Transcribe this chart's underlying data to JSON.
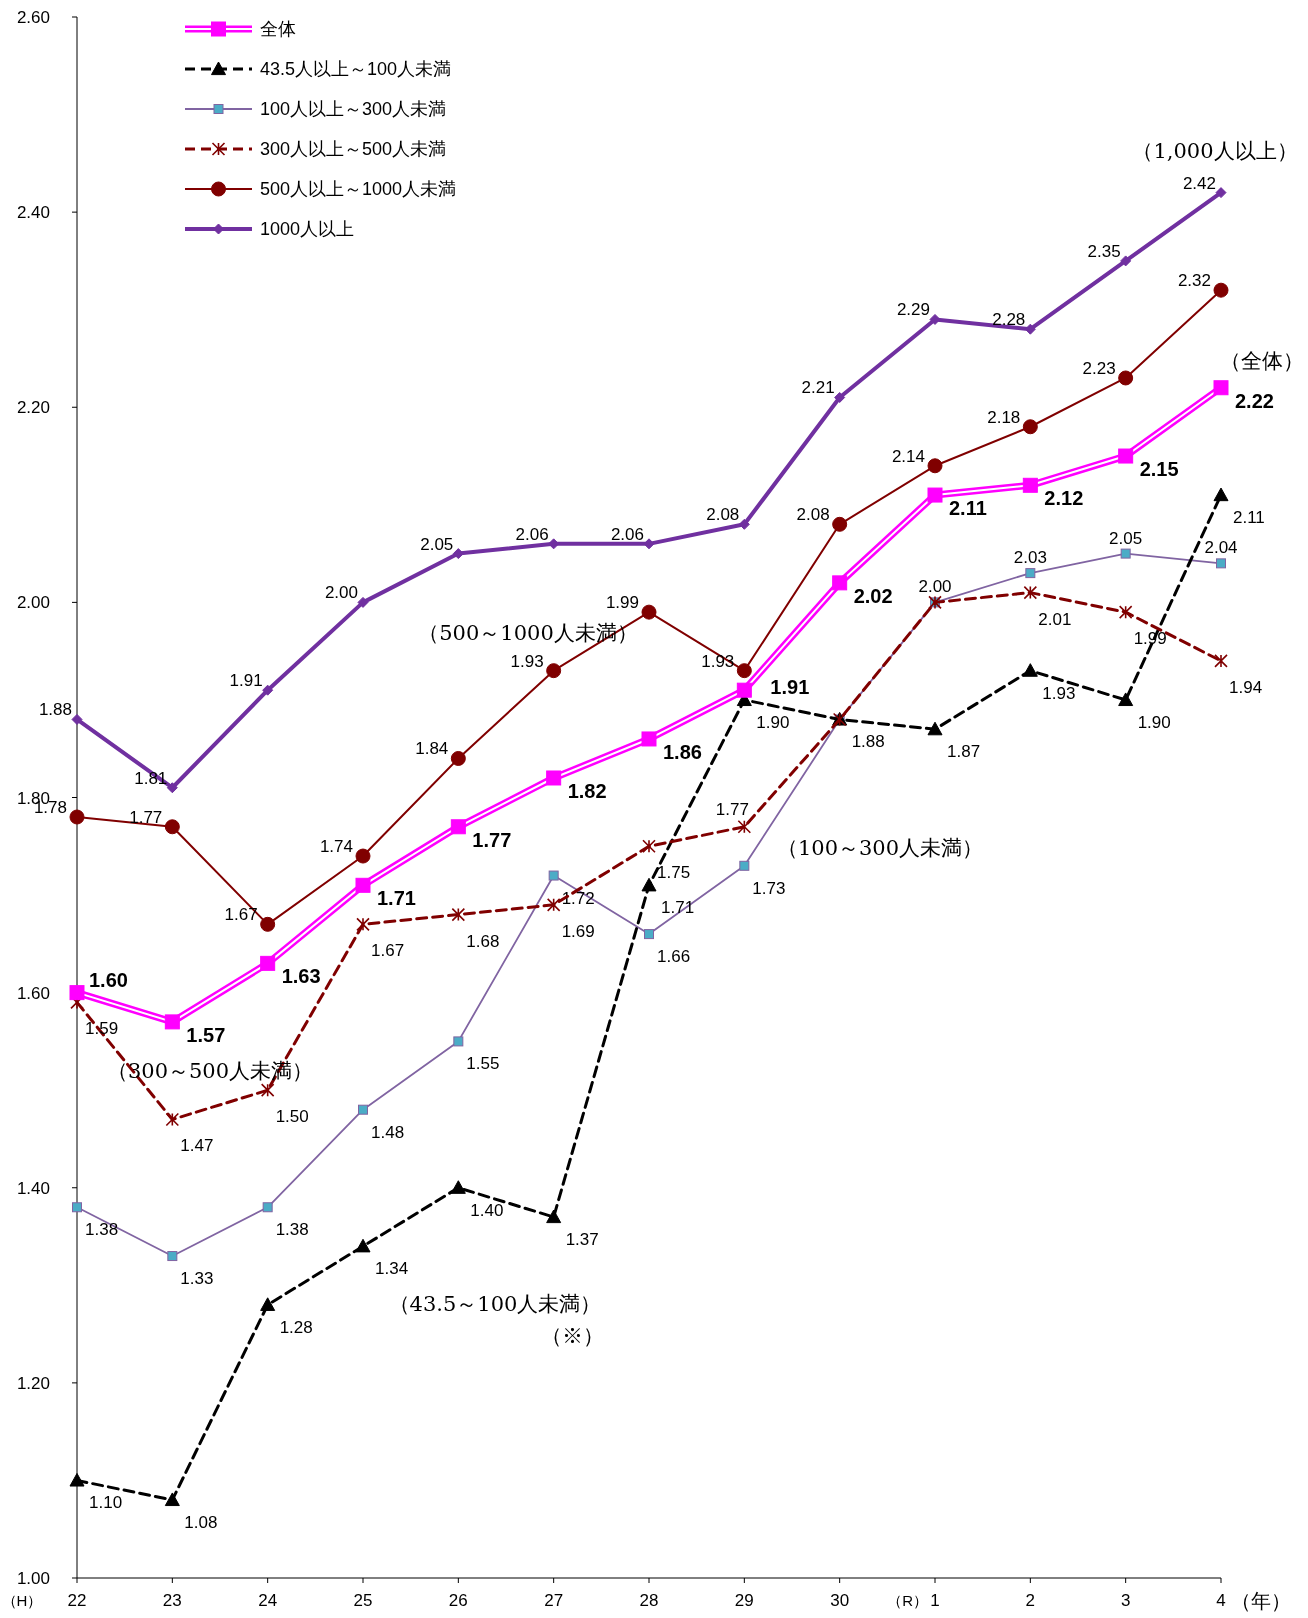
{
  "chart_data": {
    "type": "line",
    "xlabel": "（年）",
    "categories": [
      "22",
      "23",
      "24",
      "25",
      "26",
      "27",
      "28",
      "29",
      "30",
      "1",
      "2",
      "3",
      "4"
    ],
    "ylim": [
      1.0,
      2.6
    ],
    "yticks": [
      {
        "value": 1.0,
        "label": "1.00"
      },
      {
        "value": 1.2,
        "label": "1.20"
      },
      {
        "value": 1.4,
        "label": "1.40"
      },
      {
        "value": 1.6,
        "label": "1.60"
      },
      {
        "value": 1.8,
        "label": "1.80"
      },
      {
        "value": 2.0,
        "label": "2.00"
      },
      {
        "value": 2.2,
        "label": "2.20"
      },
      {
        "value": 2.4,
        "label": "2.40"
      },
      {
        "value": 2.6,
        "label": "2.60"
      }
    ],
    "grid": false,
    "legend": "top left",
    "series": [
      {
        "name": "全体",
        "color": "#ff00ff",
        "marker": "square",
        "line_style": "solid",
        "values": [
          1.6,
          1.57,
          1.63,
          1.71,
          1.77,
          1.82,
          1.86,
          1.91,
          2.02,
          2.11,
          2.12,
          2.15,
          2.22
        ],
        "value_labels": [
          "1.60",
          "1.57",
          "1.63",
          "1.71",
          "1.77",
          "1.82",
          "1.86",
          "1.91",
          "2.02",
          "2.11",
          "2.12",
          "2.15",
          "2.22"
        ]
      },
      {
        "name": "43.5人以上～100人未満",
        "color": "#000000",
        "marker": "triangle",
        "line_style": "dashed",
        "values": [
          1.1,
          1.08,
          1.28,
          1.34,
          1.4,
          1.37,
          1.71,
          1.9,
          1.88,
          1.87,
          1.93,
          1.9,
          2.11
        ],
        "value_labels": [
          "1.10",
          "1.08",
          "1.28",
          "1.34",
          "1.40",
          "1.37",
          "1.71",
          "1.90",
          "1.88",
          "1.87",
          "1.93",
          "1.90",
          "2.11"
        ]
      },
      {
        "name": "100人以上～300人未満",
        "color": "#8064a2",
        "marker": "square",
        "line_style": "solid",
        "values": [
          1.38,
          1.33,
          1.38,
          1.48,
          1.55,
          1.72,
          1.66,
          1.73,
          1.88,
          2.0,
          2.03,
          2.05,
          2.04
        ],
        "value_labels": [
          "1.38",
          "1.33",
          "1.38",
          "1.48",
          "1.55",
          "1.72",
          "1.66",
          "1.73",
          null,
          "2.00",
          "2.03",
          "2.05",
          "2.04"
        ]
      },
      {
        "name": "300人以上～500人未満",
        "color": "#800000",
        "marker": "cross",
        "line_style": "dashed",
        "values": [
          1.59,
          1.47,
          1.5,
          1.67,
          1.68,
          1.69,
          1.75,
          1.77,
          1.88,
          2.0,
          2.01,
          1.99,
          1.94
        ],
        "value_labels": [
          "1.59",
          "1.47",
          "1.50",
          "1.67",
          "1.68",
          "1.69",
          "1.75",
          "1.77",
          null,
          null,
          "2.01",
          "1.99",
          "1.94"
        ]
      },
      {
        "name": "500人以上～1000人未満",
        "color": "#800000",
        "marker": "circle",
        "line_style": "solid",
        "values": [
          1.78,
          1.77,
          1.67,
          1.74,
          1.84,
          1.93,
          1.99,
          1.93,
          2.08,
          2.14,
          2.18,
          2.23,
          2.32
        ],
        "value_labels": [
          "1.78",
          "1.77",
          "1.67",
          "1.74",
          "1.84",
          "1.93",
          "1.99",
          "1.93",
          "2.08",
          "2.14",
          "2.18",
          "2.23",
          "2.32"
        ]
      },
      {
        "name": "1000人以上",
        "color": "#7030a0",
        "marker": "diamond",
        "line_style": "solid",
        "values": [
          1.88,
          1.81,
          1.91,
          2.0,
          2.05,
          2.06,
          2.06,
          2.08,
          2.21,
          2.29,
          2.28,
          2.35,
          2.42
        ],
        "value_labels": [
          "1.88",
          "1.81",
          "1.91",
          "2.00",
          "2.05",
          "2.06",
          "2.06",
          "2.08",
          "2.21",
          "2.29",
          "2.28",
          "2.35",
          "2.42"
        ]
      }
    ],
    "annotations": [
      "（1,000人以上）",
      "（全体）",
      "（500～1000人未満）",
      "（100～300人未満）",
      "（300～500人未満）",
      "（43.5～100人未満）",
      "（※）",
      "（H）",
      "（R）"
    ]
  }
}
